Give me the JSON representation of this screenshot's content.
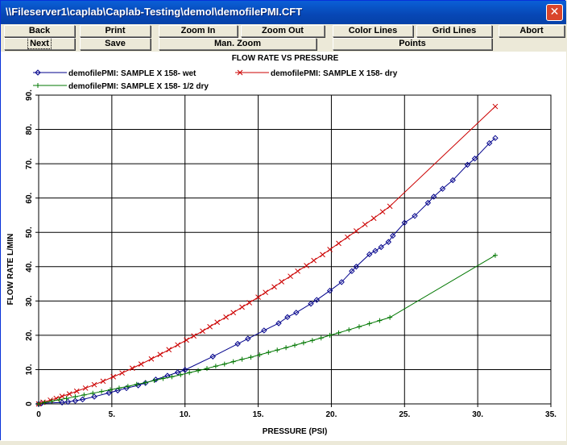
{
  "window": {
    "title": "\\\\Fileserver1\\caplab\\Caplab-Testing\\demol\\demofilePMI.CFT",
    "close_glyph": "✕"
  },
  "toolbar": {
    "back": "Back",
    "print": "Print",
    "zoom_in": "Zoom In",
    "zoom_out": "Zoom Out",
    "color_lines": "Color Lines",
    "grid_lines": "Grid Lines",
    "abort": "Abort",
    "next": "Next",
    "save": "Save",
    "man_zoom": "Man. Zoom",
    "points": "Points"
  },
  "chart_data": {
    "type": "line",
    "title": "FLOW RATE VS PRESSURE",
    "xlabel": "PRESSURE (PSI)",
    "ylabel": "FLOW RATE  L/MIN",
    "xlim": [
      0,
      35
    ],
    "ylim": [
      0,
      90
    ],
    "xticks": [
      "0",
      "5.",
      "10.",
      "15.",
      "20.",
      "25.",
      "30.",
      "35."
    ],
    "yticks": [
      "0",
      "10.",
      "20.",
      "30.",
      "40.",
      "50.",
      "60.",
      "70.",
      "80.",
      "90."
    ],
    "grid": true,
    "legend_position": "top-left",
    "series": [
      {
        "name": "demofilePMI: SAMPLE X 158- wet",
        "color": "#00008b",
        "marker": "diamond",
        "x": [
          0,
          0.2,
          1.6,
          2.0,
          2.5,
          3.0,
          3.8,
          4.8,
          5.4,
          6.0,
          6.8,
          7.3,
          8.0,
          8.8,
          9.5,
          10.0,
          11.9,
          13.6,
          14.3,
          15.4,
          16.4,
          17.0,
          17.6,
          18.6,
          19.0,
          19.9,
          20.7,
          21.4,
          21.7,
          22.6,
          23.0,
          23.4,
          23.9,
          24.2,
          25.0,
          25.7,
          26.6,
          27.0,
          27.6,
          28.3,
          29.3,
          29.8,
          30.8,
          31.2
        ],
        "y": [
          0,
          0.2,
          0.4,
          0.6,
          0.9,
          1.3,
          2.1,
          3.2,
          3.9,
          4.6,
          5.4,
          6.1,
          7.1,
          8.2,
          9.2,
          9.9,
          13.8,
          17.5,
          19.0,
          21.4,
          23.5,
          25.3,
          26.6,
          29.2,
          30.3,
          33.0,
          35.5,
          38.7,
          40.0,
          43.6,
          44.6,
          45.7,
          47.2,
          49.0,
          52.8,
          54.8,
          58.6,
          60.4,
          62.7,
          65.2,
          69.7,
          71.5,
          76.0,
          77.5
        ]
      },
      {
        "name": "demofilePMI: SAMPLE X 158- dry",
        "color": "#cc0000",
        "marker": "x",
        "x": [
          0,
          0.3,
          0.8,
          1.2,
          1.6,
          2.1,
          2.6,
          3.2,
          3.8,
          4.4,
          5.1,
          5.7,
          6.4,
          7.0,
          7.7,
          8.3,
          8.9,
          9.5,
          10.1,
          10.6,
          11.2,
          11.7,
          12.2,
          12.8,
          13.3,
          13.9,
          14.4,
          15.0,
          15.5,
          16.1,
          16.6,
          17.2,
          17.7,
          18.3,
          18.8,
          19.4,
          19.9,
          20.5,
          21.1,
          21.7,
          22.3,
          22.9,
          23.5,
          24.0,
          31.2
        ],
        "y": [
          0,
          0.5,
          1.1,
          1.6,
          2.2,
          2.9,
          3.7,
          4.6,
          5.6,
          6.6,
          7.9,
          9.0,
          10.4,
          11.6,
          13.1,
          14.4,
          15.8,
          17.2,
          18.6,
          19.8,
          21.2,
          22.5,
          23.8,
          25.3,
          26.6,
          28.2,
          29.5,
          31.1,
          32.5,
          34.1,
          35.6,
          37.2,
          38.7,
          40.3,
          41.8,
          43.5,
          45.0,
          46.8,
          48.6,
          50.4,
          52.3,
          54.1,
          56.0,
          57.6,
          86.7
        ]
      },
      {
        "name": "demofilePMI: SAMPLE X 158- 1/2 dry",
        "color": "#007700",
        "marker": "plus",
        "x": [
          0,
          0.4,
          0.9,
          1.4,
          1.9,
          2.5,
          3.1,
          3.7,
          4.3,
          4.9,
          5.5,
          6.1,
          6.7,
          7.3,
          7.9,
          8.5,
          9.1,
          9.7,
          10.3,
          10.9,
          11.5,
          12.1,
          12.7,
          13.3,
          13.9,
          14.5,
          15.1,
          15.7,
          16.3,
          16.9,
          17.5,
          18.1,
          18.7,
          19.3,
          19.9,
          20.5,
          21.2,
          21.9,
          22.6,
          23.3,
          24.0,
          31.2
        ],
        "y": [
          0,
          0.4,
          0.8,
          1.2,
          1.6,
          2.1,
          2.6,
          3.1,
          3.6,
          4.1,
          4.6,
          5.1,
          5.7,
          6.2,
          6.8,
          7.4,
          7.9,
          8.5,
          9.1,
          9.7,
          10.3,
          11.0,
          11.6,
          12.3,
          13.0,
          13.6,
          14.3,
          15.0,
          15.7,
          16.4,
          17.1,
          17.8,
          18.5,
          19.2,
          20.0,
          20.7,
          21.6,
          22.5,
          23.4,
          24.3,
          25.2,
          43.3
        ]
      }
    ]
  }
}
